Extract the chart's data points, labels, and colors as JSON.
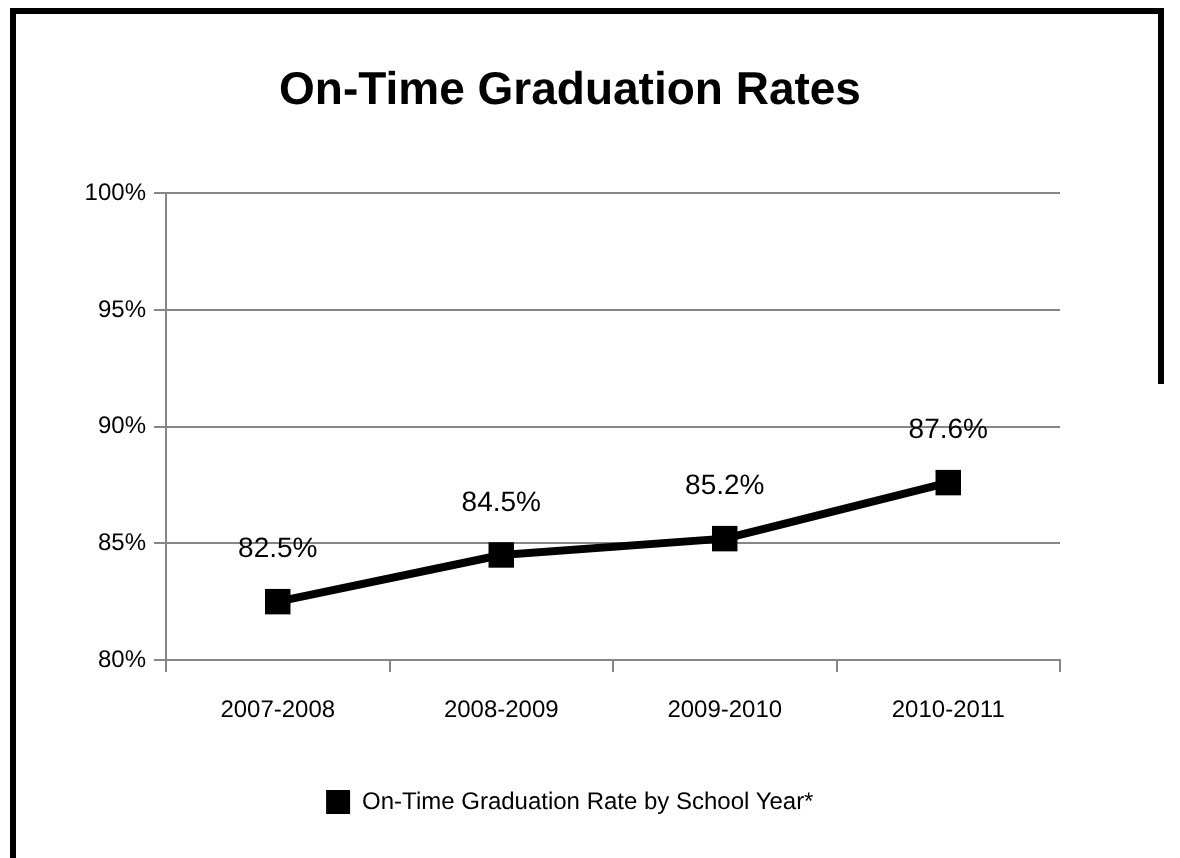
{
  "chart_data": {
    "type": "line",
    "title": "On-Time Graduation Rates",
    "categories": [
      "2007-2008",
      "2008-2009",
      "2009-2010",
      "2010-2011"
    ],
    "series": [
      {
        "name": "On-Time Graduation Rate by School Year*",
        "color": "#000000",
        "values": [
          82.5,
          84.5,
          85.2,
          87.6
        ],
        "value_labels": [
          "82.5%",
          "84.5%",
          "85.2%",
          "87.6%"
        ]
      }
    ],
    "ylim": [
      80,
      100
    ],
    "yticks": [
      {
        "value": 80,
        "label": "80%"
      },
      {
        "value": 85,
        "label": "85%"
      },
      {
        "value": 90,
        "label": "90%"
      },
      {
        "value": 95,
        "label": "95%"
      },
      {
        "value": 100,
        "label": "100%"
      }
    ],
    "grid": "y",
    "legend": "bottom",
    "marker": "square",
    "line_style": "solid"
  }
}
